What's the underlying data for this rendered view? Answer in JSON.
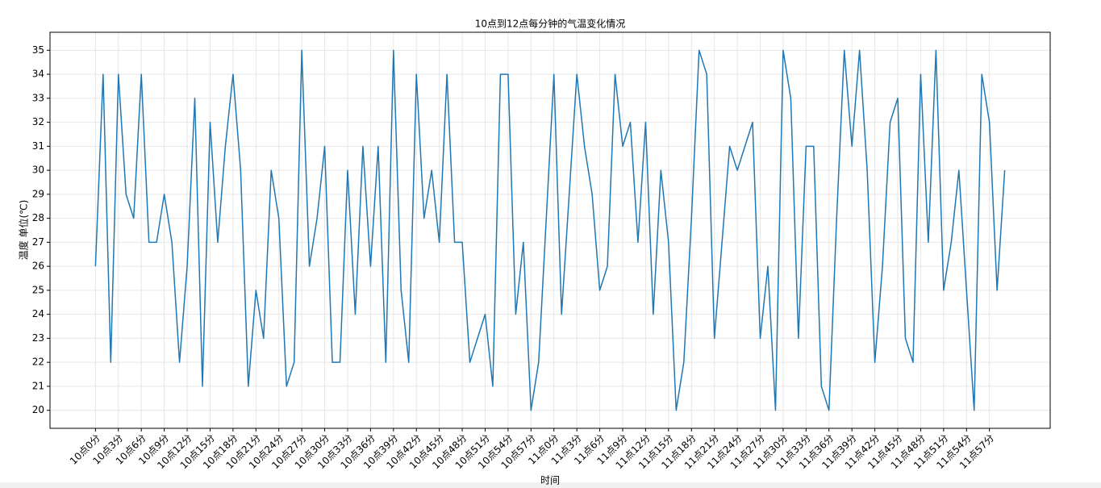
{
  "chart_data": {
    "type": "line",
    "title": "10点到12点每分钟的气温变化情况",
    "xlabel": "时间",
    "ylabel": "温度 单位(℃)",
    "categories": [
      "10点0分",
      null,
      null,
      "10点3分",
      null,
      null,
      "10点6分",
      null,
      null,
      "10点9分",
      null,
      null,
      "10点12分",
      null,
      null,
      "10点15分",
      null,
      null,
      "10点18分",
      null,
      null,
      "10点21分",
      null,
      null,
      "10点24分",
      null,
      null,
      "10点27分",
      null,
      null,
      "10点30分",
      null,
      null,
      "10点33分",
      null,
      null,
      "10点36分",
      null,
      null,
      "10点39分",
      null,
      null,
      "10点42分",
      null,
      null,
      "10点45分",
      null,
      null,
      "10点48分",
      null,
      null,
      "10点51分",
      null,
      null,
      "10点54分",
      null,
      null,
      "10点57分",
      null,
      null,
      "11点0分",
      null,
      null,
      "11点3分",
      null,
      null,
      "11点6分",
      null,
      null,
      "11点9分",
      null,
      null,
      "11点12分",
      null,
      null,
      "11点15分",
      null,
      null,
      "11点18分",
      null,
      null,
      "11点21分",
      null,
      null,
      "11点24分",
      null,
      null,
      "11点27分",
      null,
      null,
      "11点30分",
      null,
      null,
      "11点33分",
      null,
      null,
      "11点36分",
      null,
      null,
      "11点39分",
      null,
      null,
      "11点42分",
      null,
      null,
      "11点45分",
      null,
      null,
      "11点48分",
      null,
      null,
      "11点51分",
      null,
      null,
      "11点54分",
      null,
      null,
      "11点57分",
      null,
      null
    ],
    "series": [
      {
        "color": "#1f77b4",
        "values": [
          26,
          34,
          22,
          34,
          29,
          28,
          34,
          27,
          27,
          29,
          27,
          22,
          26,
          33,
          21,
          32,
          27,
          31,
          34,
          30,
          21,
          25,
          23,
          30,
          28,
          21,
          22,
          35,
          26,
          28,
          31,
          22,
          22,
          30,
          24,
          31,
          26,
          31,
          22,
          35,
          25,
          22,
          34,
          28,
          30,
          27,
          34,
          27,
          27,
          22,
          23,
          24,
          21,
          34,
          34,
          24,
          27,
          20,
          22,
          28,
          34,
          24,
          29,
          34,
          31,
          29,
          25,
          26,
          34,
          31,
          32,
          27,
          32,
          24,
          30,
          27,
          20,
          22,
          28,
          35,
          34,
          23,
          27,
          31,
          30,
          31,
          32,
          23,
          26,
          20,
          35,
          33,
          23,
          31,
          31,
          21,
          20,
          28,
          35,
          31,
          35,
          30,
          22,
          26,
          32,
          33,
          23,
          22,
          34,
          27,
          35,
          25,
          27,
          30,
          25,
          20,
          34,
          32,
          25,
          30
        ]
      }
    ],
    "ylim": [
      19.25,
      35.75
    ],
    "yticks": [
      20,
      21,
      22,
      23,
      24,
      25,
      26,
      27,
      28,
      29,
      30,
      31,
      32,
      33,
      34,
      35
    ],
    "grid": true
  }
}
